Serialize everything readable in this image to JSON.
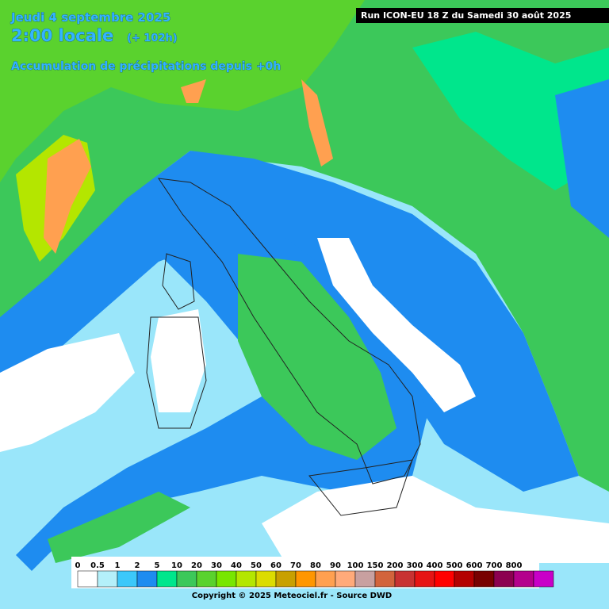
{
  "header": {
    "date": "Jeudi 4 septembre 2025",
    "time": "2:00 locale",
    "lead": "(+ 102h)",
    "subtitle": "Accumulation de précipitations depuis +0h",
    "run": "Run ICON-EU 18 Z du Samedi 30 août 2025"
  },
  "legend": {
    "thresholds": [
      0,
      0.5,
      1,
      2,
      5,
      10,
      20,
      30,
      40,
      50,
      60,
      70,
      80,
      90,
      100,
      150,
      200,
      300,
      400,
      500,
      600,
      700,
      800
    ],
    "colors": [
      "#ffffff",
      "#b4f0fa",
      "#3cc8fa",
      "#1e8cf0",
      "#00e68c",
      "#3cc85a",
      "#5ad22e",
      "#78e600",
      "#b4e600",
      "#dcdc00",
      "#c8a000",
      "#ff9600",
      "#ffa050",
      "#ffaa7a",
      "#c8a0a0",
      "#d2643c",
      "#c83232",
      "#e61414",
      "#ff0000",
      "#b40000",
      "#780000",
      "#8c0050",
      "#b4008c",
      "#c800c8"
    ]
  },
  "footer": {
    "copyright": "Copyright © 2025 Meteociel.fr - Source DWD"
  }
}
